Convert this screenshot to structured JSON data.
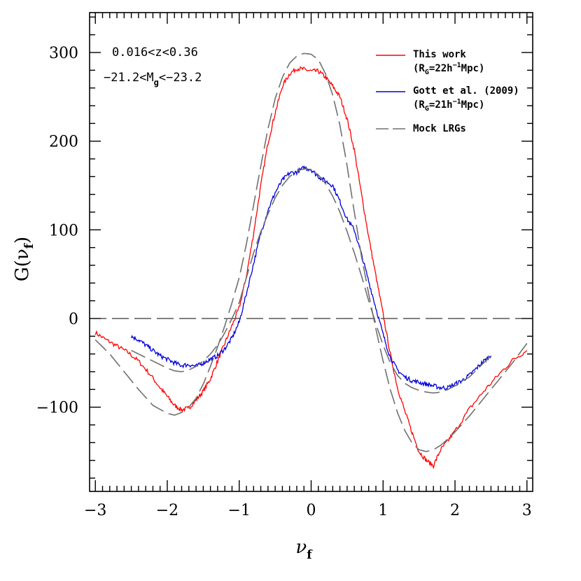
{
  "chart_data": {
    "type": "line",
    "title": "",
    "xlabel": "ν",
    "xlabel_sub": "f",
    "ylabel": "G(ν",
    "ylabel_sub": "f",
    "ylabel_close": ")",
    "xlim": [
      -3.08,
      3.08
    ],
    "ylim": [
      -195,
      345
    ],
    "x_ticks": [
      -3,
      -2,
      -1,
      0,
      1,
      2,
      3
    ],
    "x_tick_labels": [
      "−3",
      "−2",
      "−1",
      "0",
      "1",
      "2",
      "3"
    ],
    "y_ticks": [
      -100,
      0,
      100,
      200,
      300
    ],
    "y_tick_labels": [
      "−100",
      "0",
      "100",
      "200",
      "300"
    ],
    "grid": false,
    "legend_position": "top-right",
    "annotations": [
      {
        "text": "0.016<z<0.36"
      },
      {
        "text": "−21.2<M",
        "sub": "g",
        "after": "<−23.2"
      }
    ],
    "zero_line": {
      "y": 0,
      "style": "dashed",
      "color": "#000000"
    },
    "series": [
      {
        "name": "This work",
        "legend_line2": "(R",
        "legend_line2_sub": "G",
        "legend_line2_rest": "=22h",
        "legend_line2_sup": "−1",
        "legend_line2_end": "Mpc)",
        "color": "#ff0000",
        "style": "solid",
        "x": [
          -3.0,
          -2.85,
          -2.7,
          -2.55,
          -2.4,
          -2.25,
          -2.1,
          -2.0,
          -1.9,
          -1.8,
          -1.7,
          -1.6,
          -1.5,
          -1.4,
          -1.3,
          -1.2,
          -1.1,
          -1.0,
          -0.9,
          -0.8,
          -0.7,
          -0.6,
          -0.5,
          -0.4,
          -0.3,
          -0.2,
          -0.1,
          0.0,
          0.1,
          0.2,
          0.3,
          0.4,
          0.5,
          0.6,
          0.7,
          0.8,
          0.9,
          1.0,
          1.1,
          1.2,
          1.3,
          1.4,
          1.5,
          1.6,
          1.7,
          1.8,
          1.9,
          2.0,
          2.2,
          2.4,
          2.6,
          2.8,
          3.0
        ],
        "y": [
          -16,
          -24,
          -31,
          -38,
          -48,
          -62,
          -78,
          -88,
          -98,
          -103,
          -101,
          -92,
          -82,
          -68,
          -48,
          -28,
          -8,
          12,
          48,
          96,
          150,
          198,
          232,
          262,
          276,
          282,
          281,
          279,
          279,
          272,
          262,
          250,
          225,
          190,
          140,
          92,
          48,
          5,
          -40,
          -78,
          -104,
          -128,
          -150,
          -160,
          -166,
          -148,
          -138,
          -127,
          -102,
          -82,
          -64,
          -47,
          -36
        ]
      },
      {
        "name": "Gott et al. (2009)",
        "legend_line2": "(R",
        "legend_line2_sub": "G",
        "legend_line2_rest": "=21h",
        "legend_line2_sup": "−1",
        "legend_line2_end": "Mpc)",
        "color": "#0000dd",
        "style": "solid",
        "x": [
          -2.5,
          -2.4,
          -2.3,
          -2.2,
          -2.1,
          -2.0,
          -1.9,
          -1.8,
          -1.7,
          -1.6,
          -1.5,
          -1.4,
          -1.3,
          -1.2,
          -1.1,
          -1.0,
          -0.9,
          -0.8,
          -0.7,
          -0.6,
          -0.5,
          -0.4,
          -0.3,
          -0.2,
          -0.1,
          0.0,
          0.1,
          0.2,
          0.3,
          0.4,
          0.5,
          0.6,
          0.7,
          0.8,
          0.9,
          1.0,
          1.1,
          1.2,
          1.3,
          1.4,
          1.5,
          1.6,
          1.7,
          1.8,
          1.9,
          2.0,
          2.1,
          2.2,
          2.3,
          2.4,
          2.5
        ],
        "y": [
          -20,
          -24,
          -30,
          -36,
          -42,
          -46,
          -50,
          -53,
          -52,
          -54,
          -50,
          -46,
          -42,
          -34,
          -22,
          -4,
          28,
          62,
          96,
          122,
          142,
          156,
          164,
          165,
          170,
          168,
          160,
          155,
          150,
          132,
          112,
          100,
          72,
          42,
          12,
          -18,
          -44,
          -58,
          -66,
          -70,
          -72,
          -74,
          -76,
          -78,
          -78,
          -74,
          -70,
          -64,
          -56,
          -48,
          -42
        ]
      },
      {
        "name": "Mock LRGs",
        "color": "#707070",
        "style": "dashed",
        "x": [
          -3.0,
          -2.8,
          -2.6,
          -2.4,
          -2.2,
          -2.0,
          -1.9,
          -1.8,
          -1.7,
          -1.6,
          -1.5,
          -1.4,
          -1.3,
          -1.2,
          -1.1,
          -1.0,
          -0.9,
          -0.8,
          -0.7,
          -0.6,
          -0.5,
          -0.4,
          -0.3,
          -0.2,
          -0.1,
          0.0,
          0.1,
          0.2,
          0.3,
          0.4,
          0.5,
          0.6,
          0.7,
          0.8,
          0.9,
          1.0,
          1.1,
          1.2,
          1.3,
          1.4,
          1.5,
          1.6,
          1.7,
          1.8,
          1.9,
          2.0,
          2.2,
          2.4,
          2.6,
          2.8,
          3.0
        ],
        "y": [
          -24,
          -40,
          -60,
          -80,
          -98,
          -107,
          -109,
          -106,
          -100,
          -90,
          -74,
          -54,
          -32,
          -8,
          18,
          46,
          84,
          128,
          172,
          214,
          248,
          272,
          288,
          296,
          299,
          298,
          292,
          276,
          252,
          218,
          172,
          120,
          70,
          28,
          -12,
          -48,
          -80,
          -106,
          -126,
          -140,
          -148,
          -150,
          -148,
          -143,
          -136,
          -128,
          -110,
          -90,
          -70,
          -50,
          -28
        ]
      },
      {
        "name": "",
        "color": "#707070",
        "style": "dashed",
        "x": [
          -2.5,
          -2.3,
          -2.1,
          -2.0,
          -1.9,
          -1.8,
          -1.7,
          -1.6,
          -1.5,
          -1.4,
          -1.3,
          -1.2,
          -1.1,
          -1.0,
          -0.9,
          -0.8,
          -0.7,
          -0.6,
          -0.5,
          -0.4,
          -0.3,
          -0.2,
          -0.1,
          0.0,
          0.1,
          0.2,
          0.3,
          0.4,
          0.5,
          0.6,
          0.7,
          0.8,
          0.9,
          1.0,
          1.1,
          1.2,
          1.3,
          1.4,
          1.5,
          1.6,
          1.7,
          1.8,
          1.9,
          2.0,
          2.2,
          2.4,
          2.5
        ],
        "y": [
          -36,
          -44,
          -52,
          -56,
          -59,
          -60,
          -58,
          -54,
          -48,
          -40,
          -30,
          -16,
          0,
          18,
          46,
          74,
          98,
          118,
          136,
          150,
          160,
          166,
          169,
          168,
          162,
          152,
          138,
          120,
          98,
          74,
          48,
          20,
          -6,
          -30,
          -50,
          -64,
          -73,
          -78,
          -81,
          -83,
          -84,
          -83,
          -80,
          -76,
          -66,
          -50,
          -42
        ]
      }
    ]
  }
}
